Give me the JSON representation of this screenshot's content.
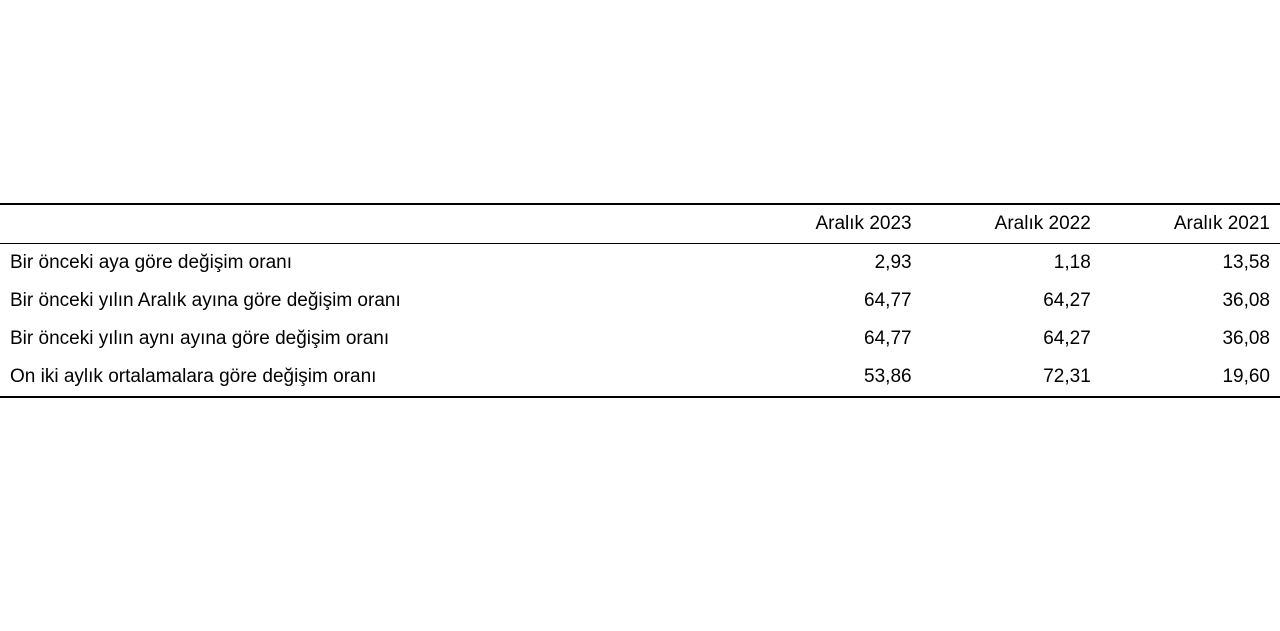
{
  "table": {
    "type": "table",
    "background_color": "#ffffff",
    "text_color": "#000000",
    "border_color": "#000000",
    "font_size_pt": 14,
    "columns": [
      {
        "label": "",
        "align": "left",
        "width_pct": 58
      },
      {
        "label": "Aralık 2023",
        "align": "right",
        "width_pct": 14
      },
      {
        "label": "Aralık 2022",
        "align": "right",
        "width_pct": 14
      },
      {
        "label": "Aralık 2021",
        "align": "right",
        "width_pct": 14
      }
    ],
    "rows": [
      {
        "label": "Bir önceki aya göre değişim oranı",
        "v2023": "2,93",
        "v2022": "1,18",
        "v2021": "13,58"
      },
      {
        "label": "Bir önceki yılın Aralık ayına göre değişim oranı",
        "v2023": "64,77",
        "v2022": "64,27",
        "v2021": "36,08"
      },
      {
        "label": "Bir önceki yılın aynı ayına göre değişim oranı",
        "v2023": "64,77",
        "v2022": "64,27",
        "v2021": "36,08"
      },
      {
        "label": "On iki aylık ortalamalara göre değişim oranı",
        "v2023": "53,86",
        "v2022": "72,31",
        "v2021": "19,60"
      }
    ]
  }
}
